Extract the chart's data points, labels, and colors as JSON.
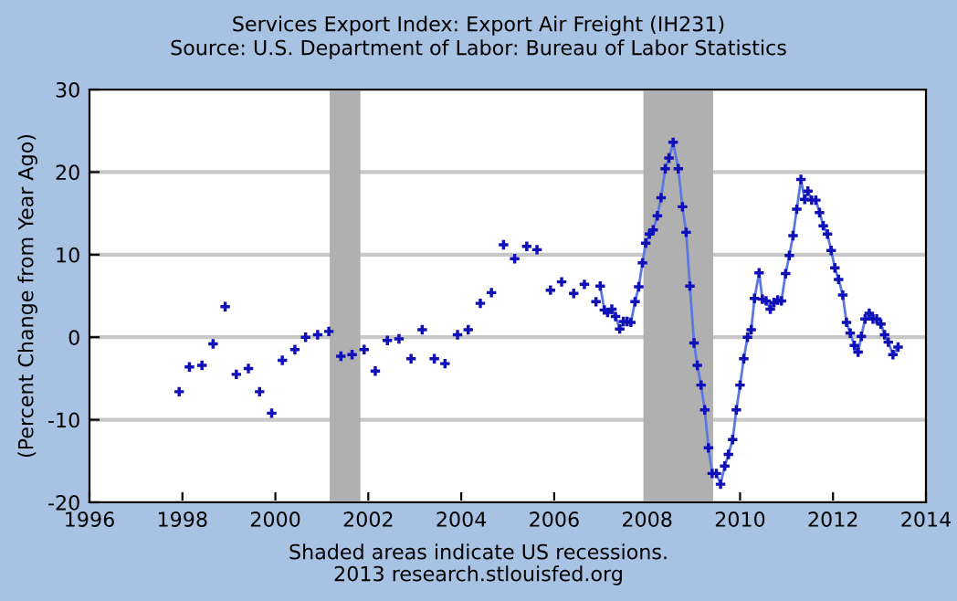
{
  "chart_data": {
    "type": "scatter",
    "title": "Services Export Index: Export Air Freight (IH231)",
    "subtitle": "Source: U.S. Department of Labor: Bureau of Labor Statistics",
    "ylabel": "(Percent Change from Year Ago)",
    "annotations": [
      "Shaded areas indicate US recessions.",
      "2013 research.stlouisfed.org"
    ],
    "xlim": [
      1996,
      2014
    ],
    "xticks": [
      1996,
      1998,
      2000,
      2002,
      2004,
      2006,
      2008,
      2010,
      2012,
      2014
    ],
    "ylim": [
      -20,
      30
    ],
    "yticks": [
      -20,
      -10,
      0,
      10,
      20,
      30
    ],
    "grid": "y",
    "marker": "cross",
    "legend": false,
    "bands": [
      {
        "axis": "x",
        "from": 2001.17,
        "to": 2001.83,
        "color": "#b0b0b0"
      },
      {
        "axis": "x",
        "from": 2007.92,
        "to": 2009.42,
        "color": "#b0b0b0"
      }
    ],
    "series": [
      {
        "color": "#1010b8",
        "x": [
          1997.93,
          1998.15,
          1998.42,
          1998.66,
          1998.92,
          1999.16,
          1999.42,
          1999.66,
          1999.92,
          2000.15,
          2000.42,
          2000.65,
          2000.91,
          2001.15,
          2001.41,
          2001.65,
          2001.91,
          2002.15,
          2002.41,
          2002.66,
          2002.92,
          2003.16,
          2003.42,
          2003.65,
          2003.92,
          2004.15,
          2004.41,
          2004.65,
          2004.91,
          2005.15,
          2005.41,
          2005.63,
          2005.92,
          2006.16,
          2006.42,
          2006.65,
          2006.9
        ],
        "values": [
          -6.6,
          -3.6,
          -3.4,
          -0.8,
          3.7,
          -4.5,
          -3.8,
          -6.6,
          -9.2,
          -2.8,
          -1.5,
          0.0,
          0.3,
          0.7,
          -2.3,
          -2.1,
          -1.5,
          -4.1,
          -0.4,
          -0.2,
          -2.6,
          0.9,
          -2.6,
          -3.2,
          0.3,
          0.9,
          4.1,
          5.4,
          11.2,
          9.5,
          11.0,
          10.6,
          5.7,
          6.7,
          5.3,
          6.4,
          4.3
        ]
      },
      {
        "type": "line",
        "color": "#1010b8",
        "x": [
          2006.99,
          2007.08,
          2007.15,
          2007.24,
          2007.32,
          2007.41,
          2007.49,
          2007.57,
          2007.65,
          2007.74,
          2007.82,
          2007.9,
          2007.97,
          2008.05,
          2008.13,
          2008.22,
          2008.3,
          2008.39,
          2008.47,
          2008.56,
          2008.67,
          2008.76,
          2008.84,
          2008.92,
          2009.01,
          2009.08,
          2009.16,
          2009.24,
          2009.32,
          2009.4,
          2009.49,
          2009.58,
          2009.67,
          2009.75,
          2009.84,
          2009.92,
          2010.0,
          2010.08,
          2010.16,
          2010.24,
          2010.31,
          2010.41,
          2010.48,
          2010.56,
          2010.65,
          2010.73,
          2010.81,
          2010.89,
          2010.98,
          2011.06,
          2011.14,
          2011.22,
          2011.31,
          2011.39,
          2011.46,
          2011.54,
          2011.63,
          2011.71,
          2011.79,
          2011.88,
          2011.96,
          2012.04,
          2012.12,
          2012.21,
          2012.29,
          2012.37,
          2012.46,
          2012.54,
          2012.61,
          2012.69,
          2012.78,
          2012.86,
          2012.94,
          2013.03,
          2013.11,
          2013.19,
          2013.29,
          2013.4
        ],
        "values": [
          6.2,
          3.3,
          3.0,
          3.4,
          2.5,
          1.0,
          1.9,
          1.9,
          1.8,
          4.3,
          6.1,
          9.0,
          11.4,
          12.5,
          13.0,
          14.7,
          16.9,
          20.4,
          21.7,
          23.6,
          20.4,
          15.8,
          12.7,
          6.2,
          -0.7,
          -3.4,
          -5.8,
          -8.8,
          -13.4,
          -16.5,
          -16.5,
          -17.8,
          -15.6,
          -14.2,
          -12.4,
          -8.8,
          -5.8,
          -2.6,
          0.0,
          0.9,
          4.7,
          7.8,
          4.6,
          4.4,
          3.4,
          4.2,
          4.5,
          4.4,
          7.7,
          9.9,
          12.3,
          15.5,
          19.1,
          16.7,
          17.7,
          16.6,
          16.6,
          15.1,
          13.5,
          12.5,
          10.5,
          8.4,
          7.0,
          5.1,
          1.8,
          0.5,
          -1.0,
          -1.8,
          0.1,
          2.2,
          2.9,
          2.2,
          2.2,
          1.6,
          0.3,
          -0.6,
          -2.1,
          -1.2
        ]
      }
    ]
  }
}
